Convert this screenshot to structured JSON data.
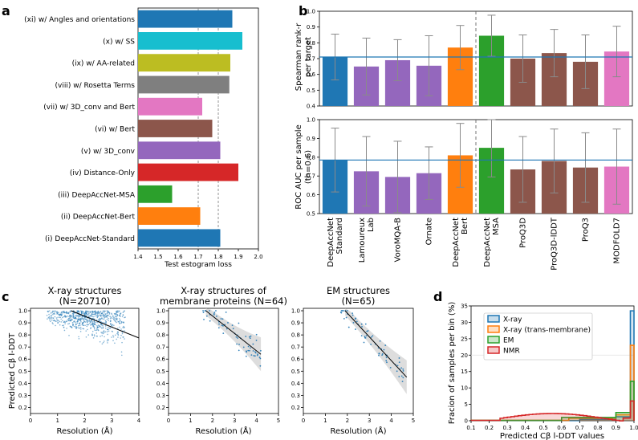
{
  "chart_data": [
    {
      "panel": "a",
      "type": "bar",
      "orientation": "horizontal",
      "xlabel": "Test estogram loss",
      "xlim": [
        1.4,
        2.0
      ],
      "xticks": [
        "1.4",
        "1.5",
        "1.6",
        "1.7",
        "1.8",
        "1.9",
        "2.0"
      ],
      "reference_lines": [
        1.7,
        1.8
      ],
      "categories": [
        "(xi) w/ Angles and orientations",
        "(x) w/ SS",
        "(ix) w/ AA-related",
        "(viii) w/ Rosetta Terms",
        "(vii) w/ 3D_conv and Bert",
        "(vi) w/ Bert",
        "(v) w/ 3D_conv",
        "(iv) Distance-Only",
        "(iii) DeepAccNet-MSA",
        "(ii) DeepAccNet-Bert",
        "(i) DeepAccNet-Standard"
      ],
      "values": [
        1.87,
        1.92,
        1.86,
        1.855,
        1.72,
        1.77,
        1.81,
        1.9,
        1.57,
        1.71,
        1.81
      ],
      "colors": [
        "#1f77b4",
        "#17becf",
        "#bcbd22",
        "#7f7f7f",
        "#e377c2",
        "#8c564b",
        "#9467bd",
        "#d62728",
        "#2ca02c",
        "#ff7f0e",
        "#1f77b4"
      ]
    },
    {
      "panel": "b",
      "type": "bar",
      "categories": [
        "DeepAccNet Standard",
        "Lamoureux Lab",
        "VoroMQA-B",
        "Ornate",
        "DeepAccNet Bert",
        "DeepAccNet MSA",
        "ProQ3D",
        "ProQ3D-lDDT",
        "ProQ3",
        "MODFOLD7"
      ],
      "colors": [
        "#1f77b4",
        "#9467bd",
        "#9467bd",
        "#9467bd",
        "#ff7f0e",
        "#2ca02c",
        "#8c564b",
        "#8c564b",
        "#8c564b",
        "#e377c2"
      ],
      "subplots": [
        {
          "ylabel": "Spearman rank-r per target",
          "ylim": [
            0.4,
            1.0
          ],
          "yticks": [
            "0.4",
            "0.5",
            "0.6",
            "0.7",
            "0.8",
            "0.9",
            "1.0"
          ],
          "reference_line": 0.71,
          "values": [
            0.71,
            0.65,
            0.69,
            0.655,
            0.77,
            0.845,
            0.7,
            0.735,
            0.68,
            0.745
          ],
          "error": [
            0.145,
            0.18,
            0.13,
            0.19,
            0.14,
            0.13,
            0.15,
            0.15,
            0.17,
            0.16
          ]
        },
        {
          "ylabel": "ROC AUC per sample (th=0.6)",
          "ylim": [
            0.5,
            1.0
          ],
          "yticks": [
            "0.5",
            "0.6",
            "0.7",
            "0.8",
            "0.9",
            "1.0"
          ],
          "reference_line": 0.785,
          "values": [
            0.785,
            0.725,
            0.695,
            0.715,
            0.81,
            0.85,
            0.735,
            0.78,
            0.745,
            0.75
          ],
          "error": [
            0.17,
            0.185,
            0.19,
            0.14,
            0.17,
            0.155,
            0.175,
            0.17,
            0.185,
            0.2
          ]
        }
      ]
    },
    {
      "panel": "c",
      "type": "scatter",
      "ylabel": "Predicted Cβ l-DDT",
      "xlabel": "Resolution (Å)",
      "yticks": [
        "0.2",
        "0.3",
        "0.4",
        "0.5",
        "0.6",
        "0.7",
        "0.8",
        "0.9",
        "1.0"
      ],
      "subplots": [
        {
          "title": "X-ray structures (N=20710)",
          "xlim": [
            0,
            4
          ],
          "xticks": [
            "0",
            "1",
            "2",
            "3",
            "4"
          ],
          "fit": [
            [
              1.5,
              1.0
            ],
            [
              4.0,
              0.775
            ]
          ]
        },
        {
          "title": "X-ray structures of membrane proteins (N=64)",
          "xlim": [
            0,
            5
          ],
          "xticks": [
            "0",
            "1",
            "2",
            "3",
            "4",
            "5"
          ],
          "fit": [
            [
              1.7,
              1.0
            ],
            [
              4.2,
              0.64
            ]
          ]
        },
        {
          "title": "EM structures (N=65)",
          "xlim": [
            0,
            5
          ],
          "xticks": [
            "0",
            "1",
            "2",
            "3",
            "4",
            "5"
          ],
          "fit": [
            [
              1.9,
              1.0
            ],
            [
              4.7,
              0.45
            ]
          ]
        }
      ]
    },
    {
      "panel": "d",
      "type": "histogram",
      "ylabel": "Fracion of samples per bin (%)",
      "xlabel": "Predicted Cβ l-DDT values",
      "xlim": [
        0.1,
        1.0
      ],
      "ylim": [
        0,
        35
      ],
      "xticks": [
        "0.1",
        "0.2",
        "0.3",
        "0.4",
        "0.5",
        "0.6",
        "0.7",
        "0.8",
        "0.9",
        "1.0"
      ],
      "yticks": [
        "0",
        "5",
        "10",
        "15",
        "20",
        "25",
        "30",
        "35"
      ],
      "series": [
        {
          "name": "X-ray",
          "color": "#1f77b4",
          "peak_bin": 0.99,
          "peak_value": 33.5
        },
        {
          "name": "X-ray (trans-membrane)",
          "color": "#ff7f0e",
          "peak_bin": 0.99,
          "peak_value": 23
        },
        {
          "name": "EM",
          "color": "#2ca02c",
          "peak_bin": 0.99,
          "peak_value": 12
        },
        {
          "name": "NMR",
          "color": "#d62728",
          "peak_bin": 0.99,
          "peak_value": 6
        }
      ]
    }
  ]
}
